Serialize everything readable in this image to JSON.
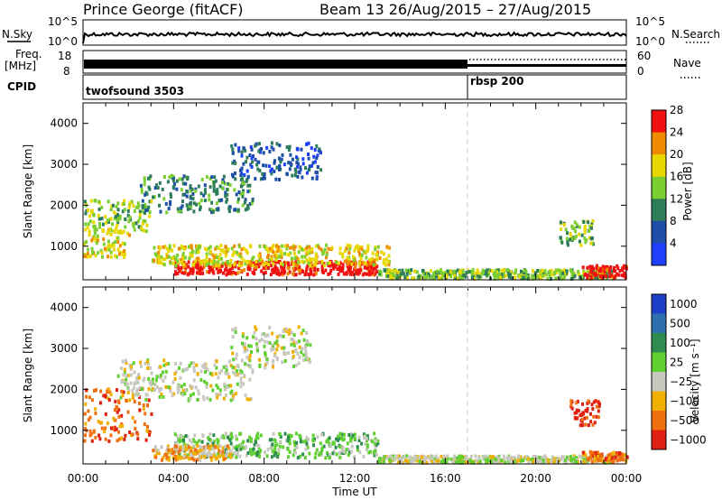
{
  "header": {
    "station_title": "Prince George (fitACF)",
    "beam_title": "Beam 13 26/Aug/2015 – 27/Aug/2015"
  },
  "top_strips": {
    "nsky_label": "N.Sky",
    "nsky_ticks": [
      "10^5",
      "10^0"
    ],
    "nsearch_label": "N.Search",
    "nsearch_ticks": [
      "10^5",
      "10^0"
    ],
    "freq_label": "Freq.",
    "freq_unit": "[MHz]",
    "freq_ticks": [
      "18",
      "8"
    ],
    "nave_label": "Nave",
    "nave_ticks": [
      "60",
      "0"
    ],
    "cpid_label": "CPID",
    "cpid_segments": [
      {
        "name": "twofsound 3503",
        "start_hour": 0
      },
      {
        "name": "rbsp 200",
        "start_hour": 17.1
      }
    ]
  },
  "chart_data": [
    {
      "type": "heatmap",
      "name": "power-panel",
      "ylabel": "Slant Range [km]",
      "xlabel": "",
      "x_range_hours": [
        0,
        24
      ],
      "ylim": [
        180,
        4500
      ],
      "y_ticks": [
        1000,
        2000,
        3000,
        4000
      ],
      "colorbar": {
        "label": "Power [dB]",
        "ticks": [
          "4",
          "8",
          "12",
          "16",
          "20",
          "24",
          "28"
        ],
        "colors": [
          "#1f3fff",
          "#1e4fa8",
          "#2e7d5a",
          "#7ccf30",
          "#e8d800",
          "#f08a00",
          "#f01010"
        ]
      },
      "echo_regions": [
        {
          "t0": 0.0,
          "t1": 3.0,
          "r0": 1300,
          "r1": 2100,
          "level": 3
        },
        {
          "t0": 0.0,
          "t1": 2.0,
          "r0": 700,
          "r1": 1400,
          "level": 4
        },
        {
          "t0": 2.5,
          "t1": 7.5,
          "r0": 1800,
          "r1": 2700,
          "level": 2
        },
        {
          "t0": 6.5,
          "t1": 10.5,
          "r0": 2600,
          "r1": 3500,
          "level": 1
        },
        {
          "t0": 4.0,
          "t1": 13.0,
          "r0": 280,
          "r1": 600,
          "level": 6
        },
        {
          "t0": 3.0,
          "t1": 13.5,
          "r0": 500,
          "r1": 1000,
          "level": 4
        },
        {
          "t0": 13.0,
          "t1": 23.5,
          "r0": 180,
          "r1": 400,
          "level": 3
        },
        {
          "t0": 22.0,
          "t1": 24.0,
          "r0": 200,
          "r1": 500,
          "level": 6
        },
        {
          "t0": 21.0,
          "t1": 22.5,
          "r0": 1000,
          "r1": 1600,
          "level": 3
        }
      ]
    },
    {
      "type": "heatmap",
      "name": "velocity-panel",
      "ylabel": "Slant Range [km]",
      "xlabel": "Time UT",
      "x_range_hours": [
        0,
        24
      ],
      "x_ticks": [
        "00:00",
        "04:00",
        "08:00",
        "12:00",
        "16:00",
        "20:00",
        "00:00"
      ],
      "ylim": [
        180,
        4500
      ],
      "y_ticks": [
        1000,
        2000,
        3000,
        4000
      ],
      "colorbar": {
        "label": "Velocity [m s⁻¹]",
        "ticks": [
          "1000",
          "500",
          "100",
          "25",
          "−25",
          "−100",
          "−500",
          "−1000"
        ],
        "colors": [
          "#1e3fc8",
          "#2e6fb0",
          "#2e8c50",
          "#5fd030",
          "#c8c8c0",
          "#f0b000",
          "#f07010",
          "#e02010"
        ]
      },
      "echo_regions": [
        {
          "t0": 0.0,
          "t1": 3.0,
          "r0": 700,
          "r1": 2000,
          "level": 6
        },
        {
          "t0": 1.5,
          "t1": 7.5,
          "r0": 1700,
          "r1": 2700,
          "level": 4
        },
        {
          "t0": 6.5,
          "t1": 10.0,
          "r0": 2500,
          "r1": 3500,
          "level": 4
        },
        {
          "t0": 4.0,
          "t1": 13.0,
          "r0": 300,
          "r1": 900,
          "level": 3
        },
        {
          "t0": 3.0,
          "t1": 6.5,
          "r0": 250,
          "r1": 600,
          "level": 5
        },
        {
          "t0": 13.0,
          "t1": 23.5,
          "r0": 180,
          "r1": 350,
          "level": 4
        },
        {
          "t0": 21.5,
          "t1": 22.8,
          "r0": 1100,
          "r1": 1700,
          "level": 7
        },
        {
          "t0": 22.0,
          "t1": 24.0,
          "r0": 200,
          "r1": 450,
          "level": 6
        }
      ]
    }
  ]
}
